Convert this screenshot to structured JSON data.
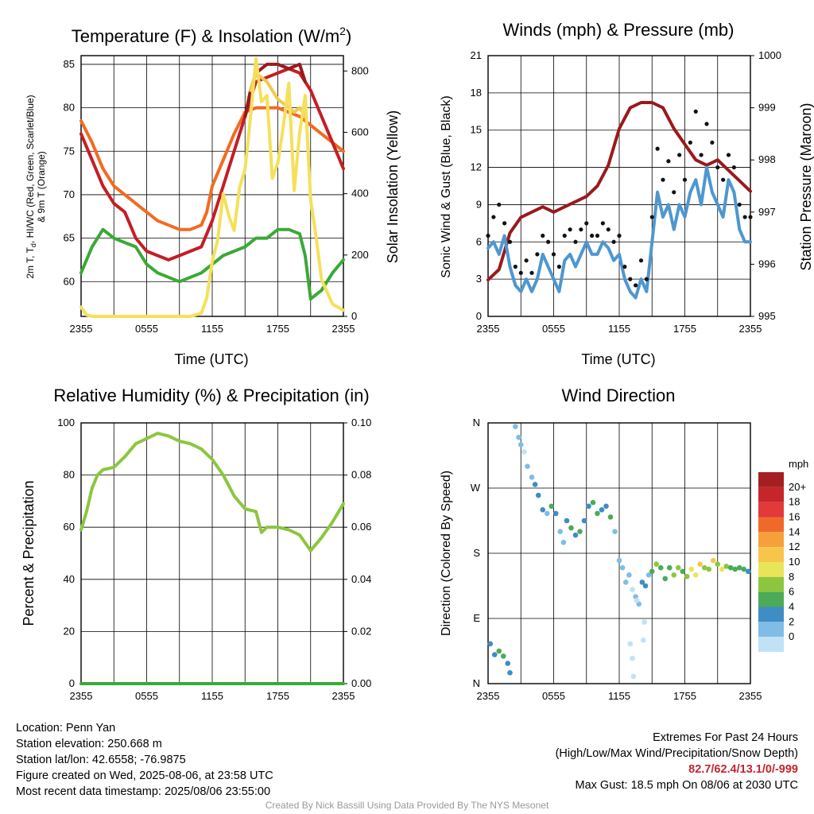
{
  "time_ticks": [
    "2355",
    "0555",
    "1155",
    "1755",
    "2355"
  ],
  "chart_data": [
    {
      "type": "line",
      "title_main": "Temperature (F) & Insolation (W/m",
      "title_sup": "2",
      "title_end": ")",
      "xlabel": "Time (UTC)",
      "ylabel_line1": "2m T, T",
      "ylabel_sub": "d",
      "ylabel_rest": ", HI/WC (Red, Green, Scarlet/Blue)",
      "ylabel_line2": "& 9m T (Orange)",
      "y2label": "Solar Insolation (Yellow)",
      "x_hours": [
        0,
        24
      ],
      "ylim": [
        56,
        86
      ],
      "yticks": [
        60,
        65,
        70,
        75,
        80,
        85
      ],
      "y2lim": [
        0,
        850
      ],
      "y2ticks": [
        0,
        200,
        400,
        600,
        800
      ],
      "series": [
        {
          "color": "#f26b21",
          "axis": "left",
          "x": [
            0,
            1,
            2,
            3,
            4,
            5,
            6,
            7,
            8,
            9,
            10,
            11,
            11.5,
            12,
            13,
            14,
            15,
            16,
            17,
            18,
            19,
            20,
            21,
            22,
            23,
            24
          ],
          "y": [
            78.5,
            76,
            73,
            71,
            70,
            69,
            68,
            67,
            66.5,
            66,
            66,
            66.5,
            68,
            71,
            74,
            77,
            79.5,
            80,
            80,
            80,
            79.5,
            79,
            78,
            77,
            76,
            75
          ]
        },
        {
          "color": "#c41e24",
          "axis": "left",
          "x": [
            0,
            1,
            2,
            3,
            4,
            5,
            6,
            7,
            8,
            9,
            10,
            11,
            12,
            13,
            14,
            15,
            15.5,
            16,
            17,
            18,
            19,
            20,
            21,
            22,
            23,
            24
          ],
          "y": [
            77,
            74,
            71,
            69,
            68,
            65,
            63.5,
            63,
            62.5,
            63,
            63.5,
            64,
            67,
            71,
            75,
            79,
            81,
            83,
            83.5,
            84,
            84.5,
            84,
            82,
            79,
            76,
            73
          ]
        },
        {
          "color": "#991a1e",
          "axis": "left",
          "x": [
            15,
            15.5,
            16,
            17,
            18,
            19,
            20,
            20.5
          ],
          "y": [
            79,
            82,
            84,
            85,
            85,
            84.5,
            85,
            83
          ]
        },
        {
          "color": "#f2c94c",
          "axis": "left",
          "x": [
            15.5,
            16,
            17,
            18,
            19,
            19.5,
            20,
            20.5
          ],
          "y": [
            82,
            84,
            83,
            81,
            80,
            79.5,
            80,
            79
          ]
        },
        {
          "color": "#3aaa35",
          "axis": "left",
          "x": [
            0,
            1,
            2,
            3,
            4,
            5,
            6,
            7,
            8,
            9,
            10,
            11,
            12,
            13,
            14,
            15,
            16,
            17,
            18,
            19,
            20,
            20.5,
            21,
            22,
            23,
            24
          ],
          "y": [
            61,
            64,
            66,
            65,
            64.5,
            64,
            62,
            61,
            60.5,
            60,
            60.5,
            61,
            62,
            63,
            63.5,
            64,
            65,
            65,
            66,
            66,
            65.5,
            63,
            58,
            59,
            61,
            62.5
          ]
        },
        {
          "color": "#f5e05b",
          "axis": "right",
          "x": [
            0,
            0.5,
            1,
            2,
            4,
            6,
            8,
            10,
            11,
            11.5,
            12,
            12.5,
            13,
            13.5,
            14,
            14.5,
            15,
            15.5,
            16,
            16.5,
            17,
            17.5,
            18,
            18.5,
            19,
            19.5,
            20,
            20.5,
            21,
            21.5,
            22,
            23,
            24
          ],
          "y": [
            30,
            5,
            0,
            0,
            0,
            0,
            0,
            0,
            10,
            60,
            180,
            250,
            400,
            330,
            280,
            420,
            480,
            650,
            840,
            700,
            720,
            450,
            500,
            620,
            760,
            410,
            600,
            720,
            380,
            260,
            120,
            40,
            20
          ]
        }
      ]
    },
    {
      "type": "line",
      "title": "Winds (mph) & Pressure (mb)",
      "xlabel": "Time (UTC)",
      "ylabel": "Sonic Wind & Gust (Blue, Black)",
      "y2label": "Station Pressure (Maroon)",
      "x_hours": [
        0,
        24
      ],
      "ylim": [
        0,
        21
      ],
      "yticks": [
        0,
        3,
        6,
        9,
        12,
        15,
        18,
        21
      ],
      "y2lim": [
        995,
        1000
      ],
      "y2ticks": [
        995,
        996,
        997,
        998,
        999,
        1000
      ],
      "series": [
        {
          "name_hidden": "pressure",
          "color": "#991a1e",
          "axis": "right",
          "x": [
            0,
            1,
            2,
            3,
            4,
            5,
            6,
            7,
            8,
            9,
            10,
            11,
            12,
            13,
            14,
            15,
            16,
            17,
            18,
            19,
            20,
            21,
            22,
            23,
            24
          ],
          "y": [
            995.7,
            995.9,
            996.6,
            996.9,
            997.0,
            997.1,
            997.0,
            997.1,
            997.2,
            997.3,
            997.5,
            997.9,
            998.6,
            999.0,
            999.1,
            999.1,
            999.0,
            998.6,
            998.3,
            998.0,
            997.9,
            998.0,
            997.8,
            997.6,
            997.4
          ]
        },
        {
          "name_hidden": "wind",
          "color": "#4e97d0",
          "axis": "left",
          "x": [
            0,
            0.5,
            1,
            1.5,
            2,
            2.5,
            3,
            3.5,
            4,
            4.5,
            5,
            5.5,
            6,
            6.5,
            7,
            7.5,
            8,
            8.5,
            9,
            9.5,
            10,
            10.5,
            11,
            11.5,
            12,
            12.5,
            13,
            13.5,
            14,
            14.5,
            15,
            15.5,
            16,
            16.5,
            17,
            17.5,
            18,
            18.5,
            19,
            19.5,
            20,
            20.5,
            21,
            21.5,
            22,
            22.5,
            23,
            23.5,
            24
          ],
          "y": [
            5.5,
            6,
            5,
            6.5,
            4,
            2.5,
            2,
            3,
            2,
            3,
            5,
            4,
            3,
            2,
            4.5,
            5,
            4,
            5,
            6,
            5,
            5,
            6,
            5.5,
            4.5,
            5,
            3,
            2,
            1.5,
            3,
            2,
            6,
            10,
            8,
            9,
            7,
            9,
            8,
            10,
            11,
            9,
            12,
            10,
            9,
            8,
            11,
            10,
            7,
            6,
            6
          ]
        },
        {
          "name_hidden": "gust",
          "color": "#111111",
          "axis": "left",
          "style": "dots",
          "x": [
            0,
            0.5,
            1,
            1.5,
            2,
            2.5,
            3,
            3.5,
            4,
            4.5,
            5,
            5.5,
            6,
            6.5,
            7,
            7.5,
            8,
            8.5,
            9,
            9.5,
            10,
            10.5,
            11,
            11.5,
            12,
            12.5,
            13,
            13.5,
            14,
            14.5,
            15,
            15.5,
            16,
            16.5,
            17,
            17.5,
            18,
            18.5,
            19,
            19.5,
            20,
            20.5,
            21,
            21.5,
            22,
            22.5,
            23,
            23.5,
            24
          ],
          "y": [
            6.5,
            8,
            9,
            7.5,
            6,
            4,
            3.5,
            4.5,
            3.5,
            5,
            6.5,
            6,
            5,
            4,
            6.5,
            7,
            6,
            7,
            7.5,
            6.5,
            6.5,
            7.5,
            7,
            6,
            6.5,
            4,
            3,
            2.5,
            4.5,
            3,
            8,
            13.5,
            11,
            12.5,
            10,
            13,
            11,
            14,
            16.5,
            13,
            15.5,
            14,
            12,
            11,
            13,
            12,
            9,
            8,
            8
          ]
        }
      ]
    },
    {
      "type": "line",
      "title": "Relative Humidity (%) & Precipitation (in)",
      "ylabel": "Percent & Precipitation",
      "x_hours": [
        0,
        24
      ],
      "ylim": [
        0,
        100
      ],
      "yticks": [
        0,
        20,
        40,
        60,
        80,
        100
      ],
      "y2lim": [
        0,
        0.1
      ],
      "y2ticks": [
        "0.00",
        "0.02",
        "0.04",
        "0.06",
        "0.08",
        "0.10"
      ],
      "series": [
        {
          "color": "#8cc63f",
          "axis": "left",
          "x": [
            0,
            0.5,
            1,
            1.5,
            2,
            3,
            4,
            5,
            6,
            7,
            8,
            9,
            10,
            11,
            12,
            13,
            14,
            15,
            16,
            16.5,
            17,
            18,
            19,
            20,
            20.5,
            21,
            22,
            23,
            24
          ],
          "y": [
            59,
            66,
            75,
            80,
            82,
            83,
            87,
            92,
            94,
            96,
            95,
            93,
            92,
            90,
            86,
            80,
            72,
            67,
            66,
            58,
            60,
            60,
            59,
            57,
            54,
            51,
            56,
            62,
            69
          ]
        },
        {
          "color": "#3aaa35",
          "axis": "left",
          "x": [
            0,
            24
          ],
          "y": [
            0,
            0
          ]
        }
      ]
    },
    {
      "type": "scatter",
      "title": "Wind Direction",
      "ylabel": "Direction (Colored By Speed)",
      "x_hours": [
        0,
        24
      ],
      "ylim": [
        0,
        360
      ],
      "ytick_values": [
        0,
        90,
        180,
        270,
        360
      ],
      "ytick_labels": [
        "N",
        "E",
        "S",
        "W",
        "N"
      ],
      "colorbar_title": "mph",
      "colorbar_labels": [
        "20+",
        "18",
        "16",
        "14",
        "12",
        "10",
        "8",
        "6",
        "4",
        "2",
        "0"
      ],
      "colorbar_colors": [
        "#a31f22",
        "#c5252b",
        "#e2393a",
        "#ef6a2a",
        "#f6a03c",
        "#f6c64c",
        "#e8e558",
        "#8cc63f",
        "#4caa58",
        "#3e8dc4",
        "#7fbde6",
        "#c0e2f4"
      ],
      "points": [
        {
          "x": 0.2,
          "y": 55,
          "s": 4
        },
        {
          "x": 0.6,
          "y": 40,
          "s": 5
        },
        {
          "x": 1.0,
          "y": 45,
          "s": 6
        },
        {
          "x": 1.4,
          "y": 38,
          "s": 6
        },
        {
          "x": 1.8,
          "y": 28,
          "s": 5
        },
        {
          "x": 2.0,
          "y": 15,
          "s": 4
        },
        {
          "x": 2.5,
          "y": 355,
          "s": 2
        },
        {
          "x": 2.8,
          "y": 340,
          "s": 2
        },
        {
          "x": 3.0,
          "y": 330,
          "s": 2
        },
        {
          "x": 3.3,
          "y": 320,
          "s": 1
        },
        {
          "x": 3.6,
          "y": 300,
          "s": 2
        },
        {
          "x": 4.0,
          "y": 285,
          "s": 3
        },
        {
          "x": 4.3,
          "y": 275,
          "s": 4
        },
        {
          "x": 4.6,
          "y": 260,
          "s": 4
        },
        {
          "x": 5.0,
          "y": 240,
          "s": 4
        },
        {
          "x": 5.4,
          "y": 235,
          "s": 3
        },
        {
          "x": 5.8,
          "y": 245,
          "s": 6
        },
        {
          "x": 6.2,
          "y": 235,
          "s": 4
        },
        {
          "x": 6.6,
          "y": 210,
          "s": 3
        },
        {
          "x": 6.9,
          "y": 195,
          "s": 3
        },
        {
          "x": 7.2,
          "y": 225,
          "s": 5
        },
        {
          "x": 7.6,
          "y": 215,
          "s": 6
        },
        {
          "x": 8.0,
          "y": 205,
          "s": 5
        },
        {
          "x": 8.4,
          "y": 210,
          "s": 6
        },
        {
          "x": 8.8,
          "y": 225,
          "s": 4
        },
        {
          "x": 9.2,
          "y": 245,
          "s": 5
        },
        {
          "x": 9.6,
          "y": 250,
          "s": 6
        },
        {
          "x": 10.0,
          "y": 235,
          "s": 6
        },
        {
          "x": 10.4,
          "y": 240,
          "s": 4
        },
        {
          "x": 10.8,
          "y": 245,
          "s": 5
        },
        {
          "x": 11.2,
          "y": 230,
          "s": 6
        },
        {
          "x": 11.6,
          "y": 210,
          "s": 3
        },
        {
          "x": 12.0,
          "y": 170,
          "s": 2
        },
        {
          "x": 12.3,
          "y": 160,
          "s": 2
        },
        {
          "x": 12.6,
          "y": 140,
          "s": 3
        },
        {
          "x": 12.9,
          "y": 150,
          "s": 2
        },
        {
          "x": 13.2,
          "y": 130,
          "s": 1
        },
        {
          "x": 13.5,
          "y": 120,
          "s": 2
        },
        {
          "x": 13.8,
          "y": 110,
          "s": 2
        },
        {
          "x": 14.1,
          "y": 140,
          "s": 4
        },
        {
          "x": 14.4,
          "y": 135,
          "s": 4
        },
        {
          "x": 14.7,
          "y": 150,
          "s": 3
        },
        {
          "x": 13.0,
          "y": 55,
          "s": 1
        },
        {
          "x": 13.2,
          "y": 35,
          "s": 1
        },
        {
          "x": 13.3,
          "y": 10,
          "s": 1
        },
        {
          "x": 14.2,
          "y": 60,
          "s": 1
        },
        {
          "x": 14.3,
          "y": 85,
          "s": 1
        },
        {
          "x": 13.6,
          "y": 115,
          "s": 1
        },
        {
          "x": 15.0,
          "y": 155,
          "s": 7
        },
        {
          "x": 15.4,
          "y": 165,
          "s": 8
        },
        {
          "x": 15.8,
          "y": 160,
          "s": 7
        },
        {
          "x": 16.2,
          "y": 145,
          "s": 6
        },
        {
          "x": 16.6,
          "y": 160,
          "s": 6
        },
        {
          "x": 17.0,
          "y": 150,
          "s": 9
        },
        {
          "x": 17.4,
          "y": 160,
          "s": 8
        },
        {
          "x": 17.8,
          "y": 155,
          "s": 7
        },
        {
          "x": 18.2,
          "y": 148,
          "s": 9
        },
        {
          "x": 18.6,
          "y": 158,
          "s": 10
        },
        {
          "x": 19.0,
          "y": 150,
          "s": 11
        },
        {
          "x": 19.4,
          "y": 165,
          "s": 12
        },
        {
          "x": 19.8,
          "y": 160,
          "s": 9
        },
        {
          "x": 20.2,
          "y": 158,
          "s": 9
        },
        {
          "x": 20.6,
          "y": 170,
          "s": 12
        },
        {
          "x": 21.0,
          "y": 165,
          "s": 9
        },
        {
          "x": 21.4,
          "y": 158,
          "s": 10
        },
        {
          "x": 21.8,
          "y": 162,
          "s": 8
        },
        {
          "x": 22.2,
          "y": 160,
          "s": 7
        },
        {
          "x": 22.6,
          "y": 158,
          "s": 6
        },
        {
          "x": 23.0,
          "y": 160,
          "s": 7
        },
        {
          "x": 23.4,
          "y": 158,
          "s": 6
        },
        {
          "x": 23.8,
          "y": 155,
          "s": 5
        }
      ]
    }
  ],
  "info": {
    "location": "Location: Penn Yan",
    "elevation": "Station elevation: 250.668 m",
    "latlon": "Station lat/lon: 42.6558; -76.9875",
    "created": "Figure created on Wed, 2025-08-06, at 23:58 UTC",
    "recent": "Most recent data timestamp: 2025/08/06 23:55:00",
    "extremes_title": "Extremes For Past 24 Hours",
    "extremes_sub": "(High/Low/Max Wind/Precipitation/Snow Depth)",
    "extremes_values": "82.7/62.4/13.1/0/-999",
    "max_gust": "Max Gust: 18.5 mph On 08/06 at 2030 UTC",
    "credit": "Created By Nick Bassill Using Data Provided By The NYS Mesonet"
  }
}
